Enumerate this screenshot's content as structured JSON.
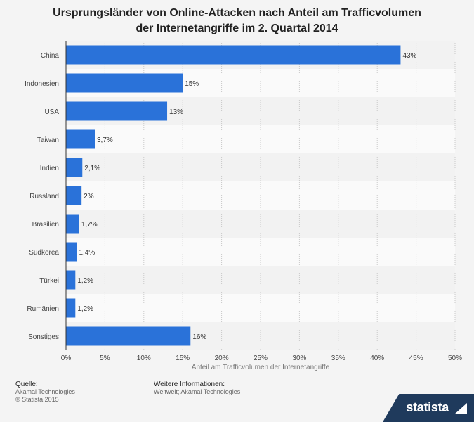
{
  "title_line1": "Ursprungsländer von Online-Attacken nach Anteil am Trafficvolumen",
  "title_line2": "der Internetangriffe im 2. Quartal 2014",
  "footer": {
    "source_label": "Quelle:",
    "source_line1": "Akamai Technologies",
    "source_line2": "© Statista 2015",
    "info_label": "Weitere Informationen:",
    "info_text": "Weltweit; Akamai Technologies"
  },
  "brand": {
    "name": "statista"
  },
  "chart_data": {
    "type": "bar",
    "orientation": "horizontal",
    "title": "Ursprungsländer von Online-Attacken nach Anteil am Trafficvolumen der Internetangriffe im 2. Quartal 2014",
    "xlabel": "Anteil am Trafficvolumen der Internetangriffe",
    "ylabel": "",
    "categories": [
      "China",
      "Indonesien",
      "USA",
      "Taiwan",
      "Indien",
      "Russland",
      "Brasilien",
      "Südkorea",
      "Türkei",
      "Rumänien",
      "Sonstiges"
    ],
    "values": [
      43,
      15,
      13,
      3.7,
      2.1,
      2,
      1.7,
      1.4,
      1.2,
      1.2,
      16
    ],
    "value_labels": [
      "43%",
      "15%",
      "13%",
      "3,7%",
      "2,1%",
      "2%",
      "1,7%",
      "1,4%",
      "1,2%",
      "1,2%",
      "16%"
    ],
    "xlim": [
      0,
      50
    ],
    "xticks": [
      0,
      5,
      10,
      15,
      20,
      25,
      30,
      35,
      40,
      45,
      50
    ],
    "xtick_labels": [
      "0%",
      "5%",
      "10%",
      "15%",
      "20%",
      "25%",
      "30%",
      "35%",
      "40%",
      "45%",
      "50%"
    ],
    "grid": true,
    "bar_color": "#2a72d9"
  }
}
